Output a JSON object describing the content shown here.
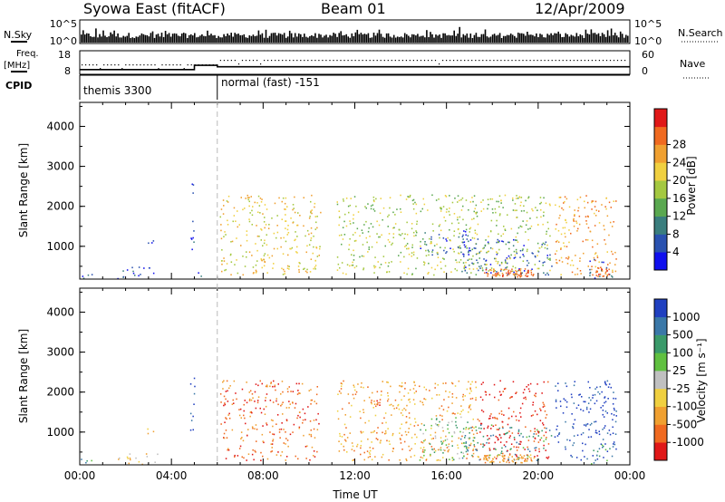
{
  "header": {
    "station": "Syowa East (fitACF)",
    "beam": "Beam 01",
    "date": "12/Apr/2009"
  },
  "status_panels": {
    "nsky_label": "N.Sky",
    "nsky_ticks": [
      "10^5",
      "10^0"
    ],
    "nsearch_label": "N.Search",
    "nsearch_ticks": [
      "10^5",
      "10^0"
    ],
    "freq_label_top": "Freq.",
    "freq_label_unit": "[MHz]",
    "freq_ticks": [
      "18",
      "8"
    ],
    "nave_label": "Nave",
    "nave_ticks": [
      "60",
      "0"
    ],
    "cpid_label": "CPID",
    "cpid_segments": [
      {
        "label": "themis 3300",
        "start_hour": 0,
        "end_hour": 6
      },
      {
        "label": "normal (fast) -151",
        "start_hour": 6,
        "end_hour": 24
      }
    ],
    "frequency_steps": [
      {
        "start_hour": 0,
        "end_hour": 5,
        "mhz": 10.0
      },
      {
        "start_hour": 5,
        "end_hour": 6,
        "mhz": 11.8
      },
      {
        "start_hour": 6,
        "end_hour": 24,
        "mhz": 11.2
      }
    ]
  },
  "chart_data": [
    {
      "type": "heatmap",
      "name": "power",
      "ylabel": "Slant Range [km]",
      "xlabel": "Time UT",
      "xlim_hours": [
        0,
        24
      ],
      "ylim": [
        180,
        4600
      ],
      "yticks": [
        1000,
        2000,
        3000,
        4000
      ],
      "xtick_labels": [
        "00:00",
        "04:00",
        "08:00",
        "12:00",
        "16:00",
        "20:00",
        "00:00"
      ],
      "colorbar": {
        "label": "Power [dB]",
        "ticks": [
          "4",
          "8",
          "12",
          "16",
          "20",
          "24",
          "28"
        ],
        "colors": [
          "#1010ee",
          "#2a52b0",
          "#3a7e7e",
          "#5aa850",
          "#a4c840",
          "#f0d040",
          "#f0a030",
          "#f06a20",
          "#e01818"
        ]
      },
      "scatter_regions": [
        {
          "t0": 0.0,
          "t1": 0.6,
          "r0": 200,
          "r1": 420,
          "color_index": 1
        },
        {
          "t0": 1.5,
          "t1": 3.4,
          "r0": 200,
          "r1": 500,
          "color_index": 1
        },
        {
          "t0": 2.9,
          "t1": 3.2,
          "r0": 900,
          "r1": 1200,
          "color_index": 1
        },
        {
          "t0": 4.8,
          "t1": 5.0,
          "r0": 900,
          "r1": 2700,
          "color_index": 1
        },
        {
          "t0": 5.1,
          "t1": 5.3,
          "r0": 200,
          "r1": 500,
          "color_index": 1
        },
        {
          "t0": 6.1,
          "t1": 10.5,
          "r0": 300,
          "r1": 2300,
          "color_index": 5
        },
        {
          "t0": 11.2,
          "t1": 17.4,
          "r0": 300,
          "r1": 2300,
          "color_index": 4
        },
        {
          "t0": 14.8,
          "t1": 17.0,
          "r0": 800,
          "r1": 1400,
          "color_index": 1
        },
        {
          "t0": 16.6,
          "t1": 20.6,
          "r0": 300,
          "r1": 1200,
          "color_index": 1
        },
        {
          "t0": 17.4,
          "t1": 20.5,
          "r0": 300,
          "r1": 2300,
          "color_index": 4
        },
        {
          "t0": 20.7,
          "t1": 23.4,
          "r0": 300,
          "r1": 2300,
          "color_index": 6
        },
        {
          "t0": 22.2,
          "t1": 23.3,
          "r0": 200,
          "r1": 700,
          "color_index": 1
        }
      ],
      "hot_spots": [
        {
          "t0": 17.6,
          "t1": 19.8,
          "r0": 250,
          "r1": 450,
          "color_index": 7
        },
        {
          "t0": 22.5,
          "t1": 23.1,
          "r0": 250,
          "r1": 500,
          "color_index": 7
        }
      ]
    },
    {
      "type": "heatmap",
      "name": "velocity",
      "ylabel": "Slant Range [km]",
      "xlabel": "Time UT",
      "xlim_hours": [
        0,
        24
      ],
      "ylim": [
        180,
        4600
      ],
      "yticks": [
        1000,
        2000,
        3000,
        4000
      ],
      "xtick_labels": [
        "00:00",
        "04:00",
        "08:00",
        "12:00",
        "16:00",
        "20:00",
        "00:00"
      ],
      "colorbar": {
        "label": "Velocity [m s⁻¹]",
        "ticks": [
          "1000",
          "500",
          "100",
          "25",
          "-25",
          "-100",
          "-500",
          "-1000"
        ],
        "colors": [
          "#2040c0",
          "#3a78a8",
          "#3a9a6a",
          "#60c040",
          "#c0c0c0",
          "#f0d040",
          "#f0a030",
          "#f06a20",
          "#e01818"
        ]
      },
      "scatter_regions": [
        {
          "t0": 0.0,
          "t1": 0.6,
          "r0": 200,
          "r1": 420,
          "color_index": 2
        },
        {
          "t0": 1.5,
          "t1": 3.4,
          "r0": 200,
          "r1": 500,
          "color_index": 5
        },
        {
          "t0": 2.9,
          "t1": 3.2,
          "r0": 900,
          "r1": 1200,
          "color_index": 6
        },
        {
          "t0": 4.8,
          "t1": 5.0,
          "r0": 900,
          "r1": 2700,
          "color_index": 0
        },
        {
          "t0": 6.1,
          "t1": 10.5,
          "r0": 300,
          "r1": 2300,
          "color_index": 7
        },
        {
          "t0": 11.2,
          "t1": 17.4,
          "r0": 300,
          "r1": 2300,
          "color_index": 6
        },
        {
          "t0": 14.8,
          "t1": 17.0,
          "r0": 300,
          "r1": 1400,
          "color_index": 3
        },
        {
          "t0": 16.6,
          "t1": 20.6,
          "r0": 300,
          "r1": 1200,
          "color_index": 2
        },
        {
          "t0": 17.4,
          "t1": 20.5,
          "r0": 300,
          "r1": 2300,
          "color_index": 8
        },
        {
          "t0": 20.7,
          "t1": 23.4,
          "r0": 300,
          "r1": 2300,
          "color_index": 0
        },
        {
          "t0": 22.2,
          "t1": 23.3,
          "r0": 200,
          "r1": 700,
          "color_index": 2
        }
      ],
      "hot_spots": [
        {
          "t0": 17.6,
          "t1": 19.8,
          "r0": 250,
          "r1": 450,
          "color_index": 6
        },
        {
          "t0": 12.8,
          "t1": 13.1,
          "r0": 1650,
          "r1": 1800,
          "color_index": 7
        }
      ]
    }
  ]
}
